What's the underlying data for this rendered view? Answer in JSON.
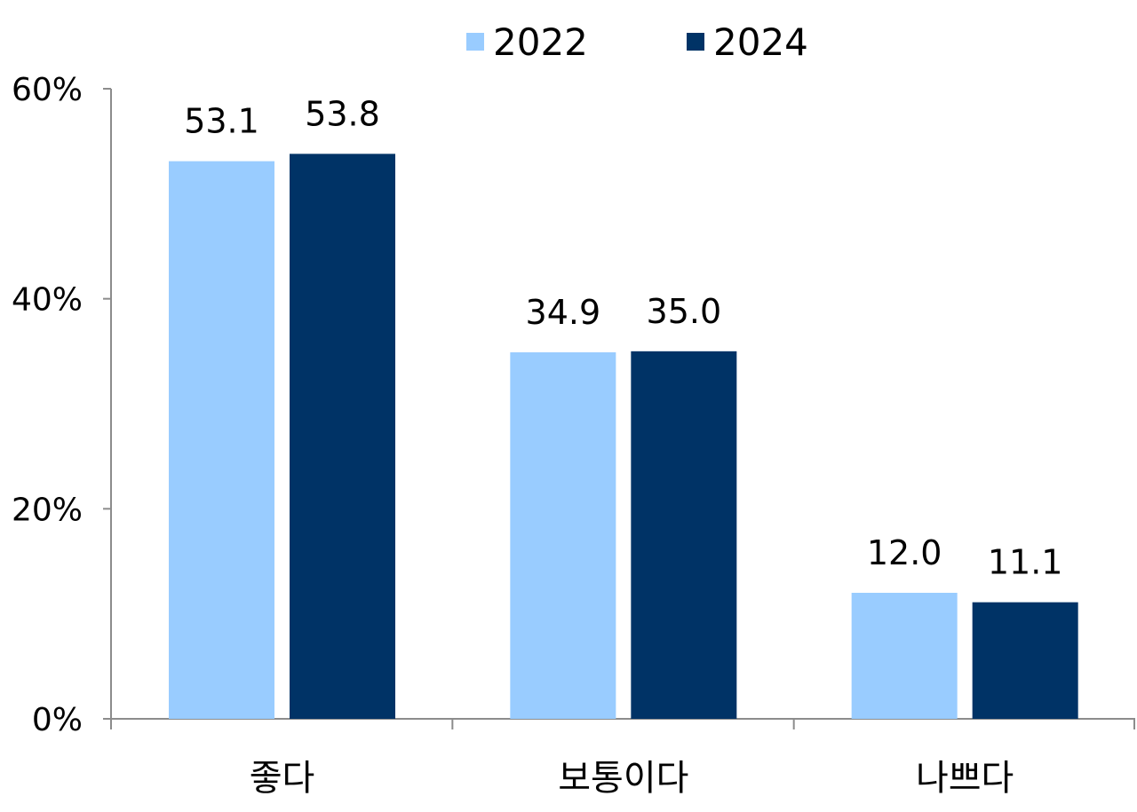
{
  "chart_data": {
    "type": "bar",
    "categories": [
      "좋다",
      "보통이다",
      "나쁘다"
    ],
    "series": [
      {
        "name": "2022",
        "values": [
          53.1,
          34.9,
          12.0
        ],
        "labels": [
          "53.1",
          "34.9",
          "12.0"
        ],
        "color": "#99ccff"
      },
      {
        "name": "2024",
        "values": [
          53.8,
          35.0,
          11.1
        ],
        "labels": [
          "53.8",
          "35.0",
          "11.1"
        ],
        "color": "#003366"
      }
    ],
    "y_ticks": [
      {
        "value": 0,
        "label": "0%"
      },
      {
        "value": 20,
        "label": "20%"
      },
      {
        "value": 40,
        "label": "40%"
      },
      {
        "value": 60,
        "label": "60%"
      }
    ],
    "ylim": [
      0,
      60
    ],
    "grid": false,
    "legend_position": "top-center"
  }
}
